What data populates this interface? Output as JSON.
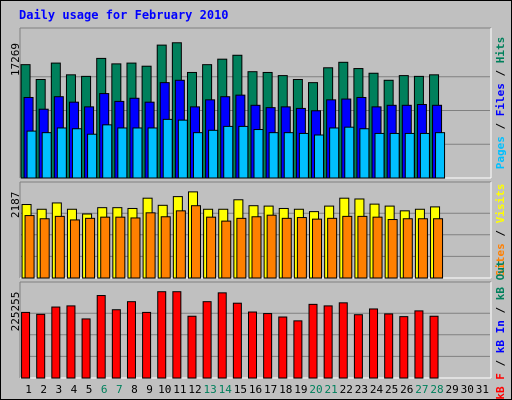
{
  "chart_data": {
    "type": "bar",
    "title": "Daily usage for February 2010",
    "days": [
      "1",
      "2",
      "3",
      "4",
      "5",
      "6",
      "7",
      "8",
      "9",
      "10",
      "11",
      "12",
      "13",
      "14",
      "15",
      "16",
      "17",
      "18",
      "19",
      "20",
      "21",
      "22",
      "23",
      "24",
      "25",
      "26",
      "27",
      "28",
      "29",
      "30",
      "31"
    ],
    "weekend_days": [
      "6",
      "7",
      "13",
      "14",
      "20",
      "21",
      "27",
      "28"
    ],
    "colors": {
      "background": "#c0c0c0",
      "title": "#0000ff",
      "axis": "#000000",
      "grid": "#808080",
      "tick_normal": "#000000",
      "tick_weekend": "#00805c",
      "hits": "#00805c",
      "files": "#0000ff",
      "pages": "#00c0ff",
      "visits": "#ffff00",
      "sites": "#ff8000",
      "kbytes": "#ff0000",
      "kb_in": "#0000ff",
      "kb_out": "#00805c"
    },
    "panels": [
      {
        "name": "hits-files-pages",
        "max_label": "17269",
        "ymax": 17269,
        "series": [
          {
            "name": "Hits",
            "key": "hits",
            "values": [
              14500,
              12600,
              14700,
              13200,
              13000,
              15300,
              14600,
              14700,
              14300,
              17000,
              17300,
              13500,
              14500,
              15200,
              15700,
              13600,
              13500,
              13100,
              12600,
              12200,
              14100,
              14800,
              14000,
              13400,
              12500,
              13100,
              13000,
              13200
            ]
          },
          {
            "name": "Files",
            "key": "files",
            "values": [
              10300,
              8800,
              10400,
              9700,
              9100,
              10800,
              9800,
              10200,
              9700,
              12200,
              12500,
              9100,
              10000,
              10400,
              10600,
              9300,
              9000,
              9100,
              8900,
              8600,
              10000,
              10100,
              10300,
              9100,
              9300,
              9300,
              9400,
              9300
            ]
          },
          {
            "name": "Pages",
            "key": "pages",
            "values": [
              6000,
              5800,
              6400,
              6300,
              5600,
              6800,
              6400,
              6400,
              6400,
              7500,
              7400,
              5800,
              6100,
              6600,
              6600,
              6200,
              5800,
              5800,
              5700,
              5500,
              6400,
              6500,
              6300,
              5700,
              5700,
              5700,
              5700,
              5800
            ]
          }
        ],
        "side_labels": [
          {
            "text": "Pages",
            "key": "pages"
          },
          {
            "text": " / ",
            "key": "axis"
          },
          {
            "text": "Files",
            "key": "files"
          },
          {
            "text": " / ",
            "key": "axis"
          },
          {
            "text": "Hits",
            "key": "hits"
          }
        ]
      },
      {
        "name": "visits-sites",
        "max_label": "2187",
        "ymax": 2187,
        "series": [
          {
            "name": "Visits",
            "key": "visits",
            "values": [
              1860,
              1740,
              1900,
              1740,
              1620,
              1780,
              1780,
              1760,
              2020,
              1840,
              2060,
              2180,
              1740,
              1740,
              1980,
              1830,
              1820,
              1760,
              1740,
              1680,
              1820,
              2020,
              2000,
              1870,
              1820,
              1700,
              1740,
              1800
            ]
          },
          {
            "name": "Sites",
            "key": "sites",
            "values": [
              1580,
              1500,
              1560,
              1470,
              1510,
              1540,
              1540,
              1520,
              1650,
              1550,
              1700,
              1830,
              1540,
              1440,
              1510,
              1550,
              1590,
              1510,
              1530,
              1490,
              1510,
              1560,
              1560,
              1540,
              1480,
              1500,
              1500,
              1500
            ]
          }
        ],
        "side_labels": [
          {
            "text": "Sites",
            "key": "sites"
          },
          {
            "text": " / ",
            "key": "axis"
          },
          {
            "text": "Visits",
            "key": "visits"
          }
        ]
      },
      {
        "name": "kbytes",
        "max_label": "225255",
        "ymax": 225255,
        "series": [
          {
            "name": "kB F",
            "key": "kbytes",
            "values": [
              171000,
              166000,
              185000,
              188000,
              154000,
              215000,
              178000,
              199000,
              171000,
              225000,
              225000,
              161000,
              199000,
              222000,
              195000,
              172000,
              168000,
              159000,
              149000,
              192000,
              188000,
              196000,
              165000,
              180000,
              167000,
              160000,
              175000,
              161000
            ]
          }
        ],
        "side_labels": [
          {
            "text": "kB F",
            "key": "kbytes"
          },
          {
            "text": " / ",
            "key": "axis"
          },
          {
            "text": "kB In",
            "key": "kb_in"
          },
          {
            "text": " / ",
            "key": "axis"
          },
          {
            "text": "kB Out",
            "key": "kb_out"
          }
        ]
      }
    ]
  }
}
